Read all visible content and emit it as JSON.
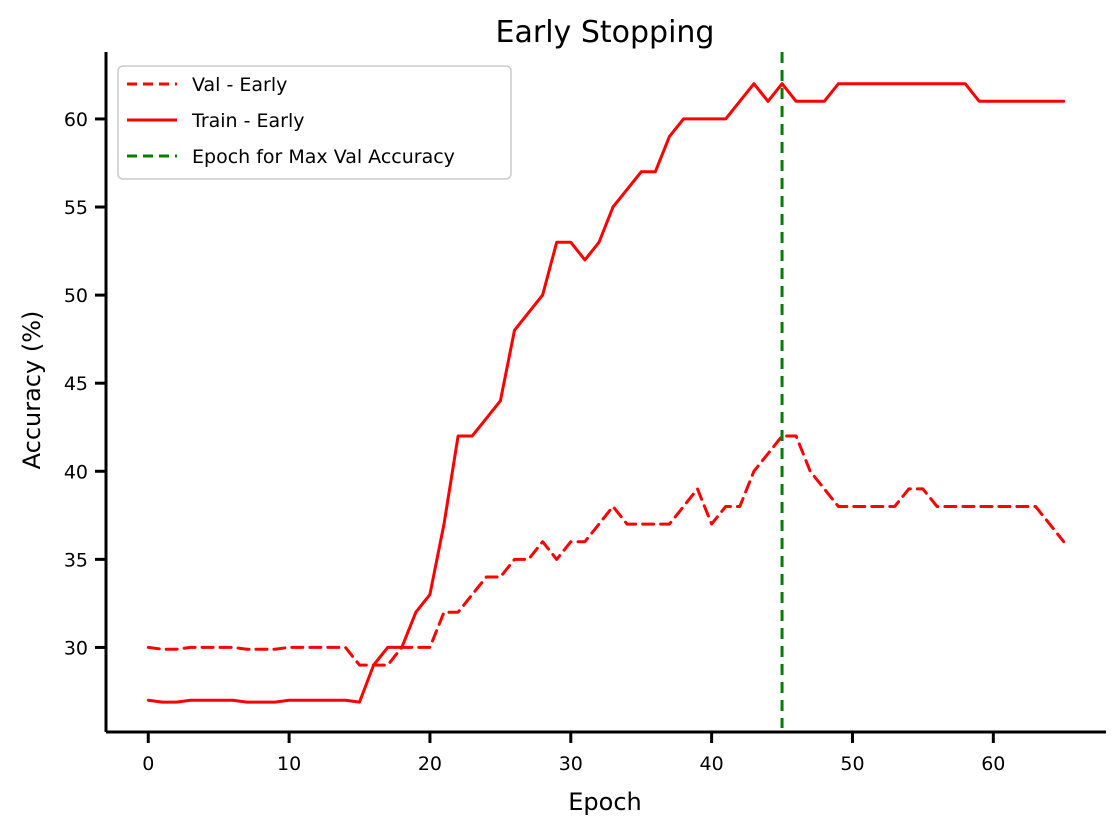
{
  "chart_data": {
    "type": "line",
    "title": "Early Stopping",
    "xlabel": "Epoch",
    "ylabel": "Accuracy (%)",
    "xlim": [
      -3,
      68
    ],
    "ylim": [
      25.2,
      63.8
    ],
    "xticks": [
      0,
      10,
      20,
      30,
      40,
      50,
      60
    ],
    "yticks": [
      30,
      35,
      40,
      45,
      50,
      55,
      60
    ],
    "grid": false,
    "legend_position": "top-left",
    "x": [
      0,
      1,
      2,
      3,
      4,
      5,
      6,
      7,
      8,
      9,
      10,
      11,
      12,
      13,
      14,
      15,
      16,
      17,
      18,
      19,
      20,
      21,
      22,
      23,
      24,
      25,
      26,
      27,
      28,
      29,
      30,
      31,
      32,
      33,
      34,
      35,
      36,
      37,
      38,
      39,
      40,
      41,
      42,
      43,
      44,
      45,
      46,
      47,
      48,
      49,
      50,
      51,
      52,
      53,
      54,
      55,
      56,
      57,
      58,
      59,
      60,
      61,
      62,
      63,
      64,
      65
    ],
    "series": [
      {
        "name": "Val - Early",
        "color": "#ff0000",
        "dash": "dashed",
        "values": [
          30,
          29.9,
          29.9,
          30,
          30,
          30,
          30,
          29.9,
          29.9,
          29.9,
          30,
          30,
          30,
          30,
          30,
          29,
          29,
          29,
          30,
          30,
          30,
          32,
          32,
          33,
          34,
          34,
          35,
          35,
          36,
          35,
          36,
          36,
          37,
          38,
          37,
          37,
          37,
          37,
          38,
          39,
          37,
          38,
          38,
          40,
          41,
          42,
          42,
          40,
          39,
          38,
          38,
          38,
          38,
          38,
          39,
          39,
          38,
          38,
          38,
          38,
          38,
          38,
          38,
          38,
          37,
          36
        ]
      },
      {
        "name": "Train - Early",
        "color": "#ff0000",
        "dash": "solid",
        "values": [
          27,
          26.9,
          26.9,
          27,
          27,
          27,
          27,
          26.9,
          26.9,
          26.9,
          27,
          27,
          27,
          27,
          27,
          26.9,
          29,
          30,
          30,
          32,
          33,
          37,
          42,
          42,
          43,
          44,
          48,
          49,
          50,
          53,
          53,
          52,
          53,
          55,
          56,
          57,
          57,
          59,
          60,
          60,
          60,
          60,
          61,
          62,
          61,
          62,
          61,
          61,
          61,
          62,
          62,
          62,
          62,
          62,
          62,
          62,
          62,
          62,
          62,
          61,
          61,
          61,
          61,
          61,
          61,
          61
        ]
      }
    ],
    "vline": {
      "name": "Epoch for Max Val Accuracy",
      "x": 45,
      "color": "#008000",
      "dash": "dashed"
    }
  }
}
